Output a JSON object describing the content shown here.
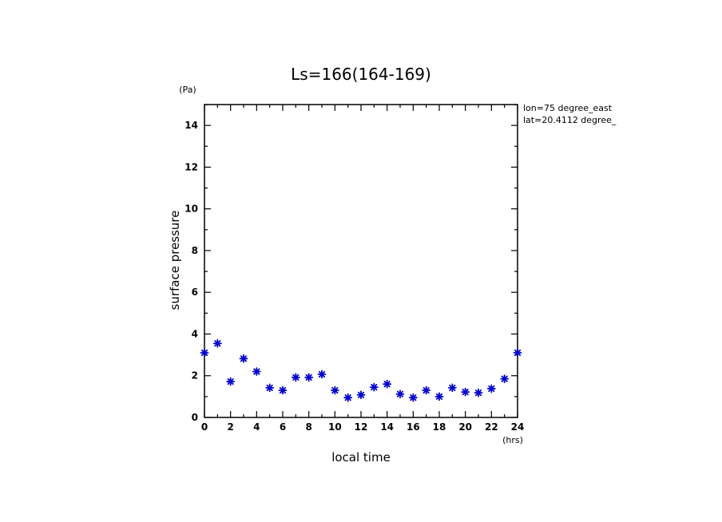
{
  "chart_data": {
    "type": "scatter",
    "title": "Ls=166(164-169)",
    "xlabel": "local time",
    "ylabel": "surface pressure",
    "x_unit": "(hrs)",
    "y_unit": "(Pa)",
    "xlim": [
      0,
      24
    ],
    "ylim": [
      0,
      15
    ],
    "x_ticks": [
      0,
      2,
      4,
      6,
      8,
      10,
      12,
      14,
      16,
      18,
      20,
      22,
      24
    ],
    "y_ticks": [
      0,
      2,
      4,
      6,
      8,
      10,
      12,
      14
    ],
    "grid": false,
    "marker": "asterisk",
    "marker_color": "#0000cc",
    "annotations": [
      "lon=75 degree_east",
      "lat=20.4112 degree_"
    ],
    "series": [
      {
        "x": [
          0,
          1,
          2,
          3,
          4,
          5,
          6,
          7,
          8,
          9,
          10,
          11,
          12,
          13,
          14,
          15,
          16,
          17,
          18,
          19,
          20,
          21,
          22,
          23,
          24
        ],
        "y": [
          3.1,
          3.55,
          1.72,
          2.82,
          2.2,
          1.42,
          1.3,
          1.92,
          1.92,
          2.07,
          1.3,
          0.95,
          1.08,
          1.45,
          1.6,
          1.12,
          0.95,
          1.3,
          1.0,
          1.42,
          1.22,
          1.18,
          1.38,
          1.85,
          3.1
        ]
      }
    ]
  }
}
